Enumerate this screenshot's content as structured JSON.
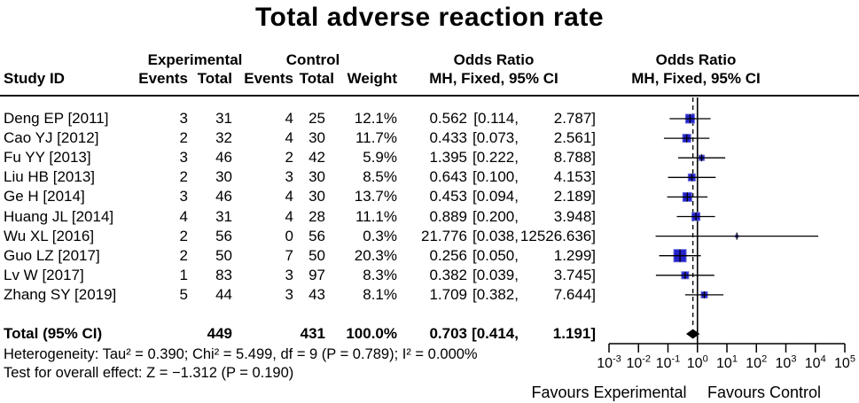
{
  "title": "Total adverse reaction rate",
  "columns": {
    "study_id": "Study ID",
    "experimental": "Experimental",
    "control": "Control",
    "events": "Events",
    "total": "Total",
    "weight": "Weight",
    "odds_ratio": "Odds Ratio",
    "method": "MH, Fixed, 95% CI"
  },
  "total_row": {
    "label": "Total (95% CI)",
    "e_total": "449",
    "c_total": "431",
    "weight": "100.0%",
    "or_str": "0.703",
    "low_str": "[0.414,",
    "high_str": "1.191]"
  },
  "footnotes": {
    "heterogeneity": "Heterogeneity: Tau² = 0.390; Chi² = 5.499, df = 9 (P = 0.789); I² = 0.000%",
    "overall_effect": "Test for overall effect: Z = −1.312 (P = 0.190)"
  },
  "axis": {
    "tick_exponents": [
      -3,
      -2,
      -1,
      0,
      1,
      2,
      3,
      4,
      5
    ],
    "favours_left": "Favours Experimental",
    "favours_right": "Favours Control"
  },
  "colors": {
    "marker_fill": "#2222cc",
    "marker_edge": "#6b6bdd",
    "line": "#000000"
  },
  "chart_data": {
    "type": "forest",
    "x_scale": "log10",
    "x_range": [
      0.001,
      100000
    ],
    "null_line": 1,
    "pooled": {
      "or": 0.703,
      "ci_low": 0.414,
      "ci_high": 1.191
    },
    "studies": [
      {
        "id": "Deng EP [2011]",
        "e_events": "3",
        "e_total": "31",
        "c_events": "4",
        "c_total": "25",
        "weight": "12.1%",
        "weight_pct": 12.1,
        "or": 0.562,
        "ci_low": 0.114,
        "ci_high": 2.787,
        "or_str": "0.562",
        "low_str": "[0.114,",
        "high_str": "2.787]"
      },
      {
        "id": "Cao YJ [2012]",
        "e_events": "2",
        "e_total": "32",
        "c_events": "4",
        "c_total": "30",
        "weight": "11.7%",
        "weight_pct": 11.7,
        "or": 0.433,
        "ci_low": 0.073,
        "ci_high": 2.561,
        "or_str": "0.433",
        "low_str": "[0.073,",
        "high_str": "2.561]"
      },
      {
        "id": "Fu YY [2013]",
        "e_events": "3",
        "e_total": "46",
        "c_events": "2",
        "c_total": "42",
        "weight": "5.9%",
        "weight_pct": 5.9,
        "or": 1.395,
        "ci_low": 0.222,
        "ci_high": 8.788,
        "or_str": "1.395",
        "low_str": "[0.222,",
        "high_str": "8.788]"
      },
      {
        "id": "Liu HB [2013]",
        "e_events": "2",
        "e_total": "30",
        "c_events": "3",
        "c_total": "30",
        "weight": "8.5%",
        "weight_pct": 8.5,
        "or": 0.643,
        "ci_low": 0.1,
        "ci_high": 4.153,
        "or_str": "0.643",
        "low_str": "[0.100,",
        "high_str": "4.153]"
      },
      {
        "id": "Ge H [2014]",
        "e_events": "3",
        "e_total": "46",
        "c_events": "4",
        "c_total": "30",
        "weight": "13.7%",
        "weight_pct": 13.7,
        "or": 0.453,
        "ci_low": 0.094,
        "ci_high": 2.189,
        "or_str": "0.453",
        "low_str": "[0.094,",
        "high_str": "2.189]"
      },
      {
        "id": "Huang JL [2014]",
        "e_events": "4",
        "e_total": "31",
        "c_events": "4",
        "c_total": "28",
        "weight": "11.1%",
        "weight_pct": 11.1,
        "or": 0.889,
        "ci_low": 0.2,
        "ci_high": 3.948,
        "or_str": "0.889",
        "low_str": "[0.200,",
        "high_str": "3.948]"
      },
      {
        "id": "Wu XL [2016]",
        "e_events": "2",
        "e_total": "56",
        "c_events": "0",
        "c_total": "56",
        "weight": "0.3%",
        "weight_pct": 0.3,
        "or": 21.776,
        "ci_low": 0.038,
        "ci_high": 12526.636,
        "or_str": "21.776",
        "low_str": "[0.038,",
        "high_str": "12526.636]"
      },
      {
        "id": "Guo LZ [2017]",
        "e_events": "2",
        "e_total": "50",
        "c_events": "7",
        "c_total": "50",
        "weight": "20.3%",
        "weight_pct": 20.3,
        "or": 0.256,
        "ci_low": 0.05,
        "ci_high": 1.299,
        "or_str": "0.256",
        "low_str": "[0.050,",
        "high_str": "1.299]"
      },
      {
        "id": "Lv W [2017]",
        "e_events": "1",
        "e_total": "83",
        "c_events": "3",
        "c_total": "97",
        "weight": "8.3%",
        "weight_pct": 8.3,
        "or": 0.382,
        "ci_low": 0.039,
        "ci_high": 3.745,
        "or_str": "0.382",
        "low_str": "[0.039,",
        "high_str": "3.745]"
      },
      {
        "id": "Zhang SY [2019]",
        "e_events": "5",
        "e_total": "44",
        "c_events": "3",
        "c_total": "43",
        "weight": "8.1%",
        "weight_pct": 8.1,
        "or": 1.709,
        "ci_low": 0.382,
        "ci_high": 7.644,
        "or_str": "1.709",
        "low_str": "[0.382,",
        "high_str": "7.644]"
      }
    ]
  }
}
